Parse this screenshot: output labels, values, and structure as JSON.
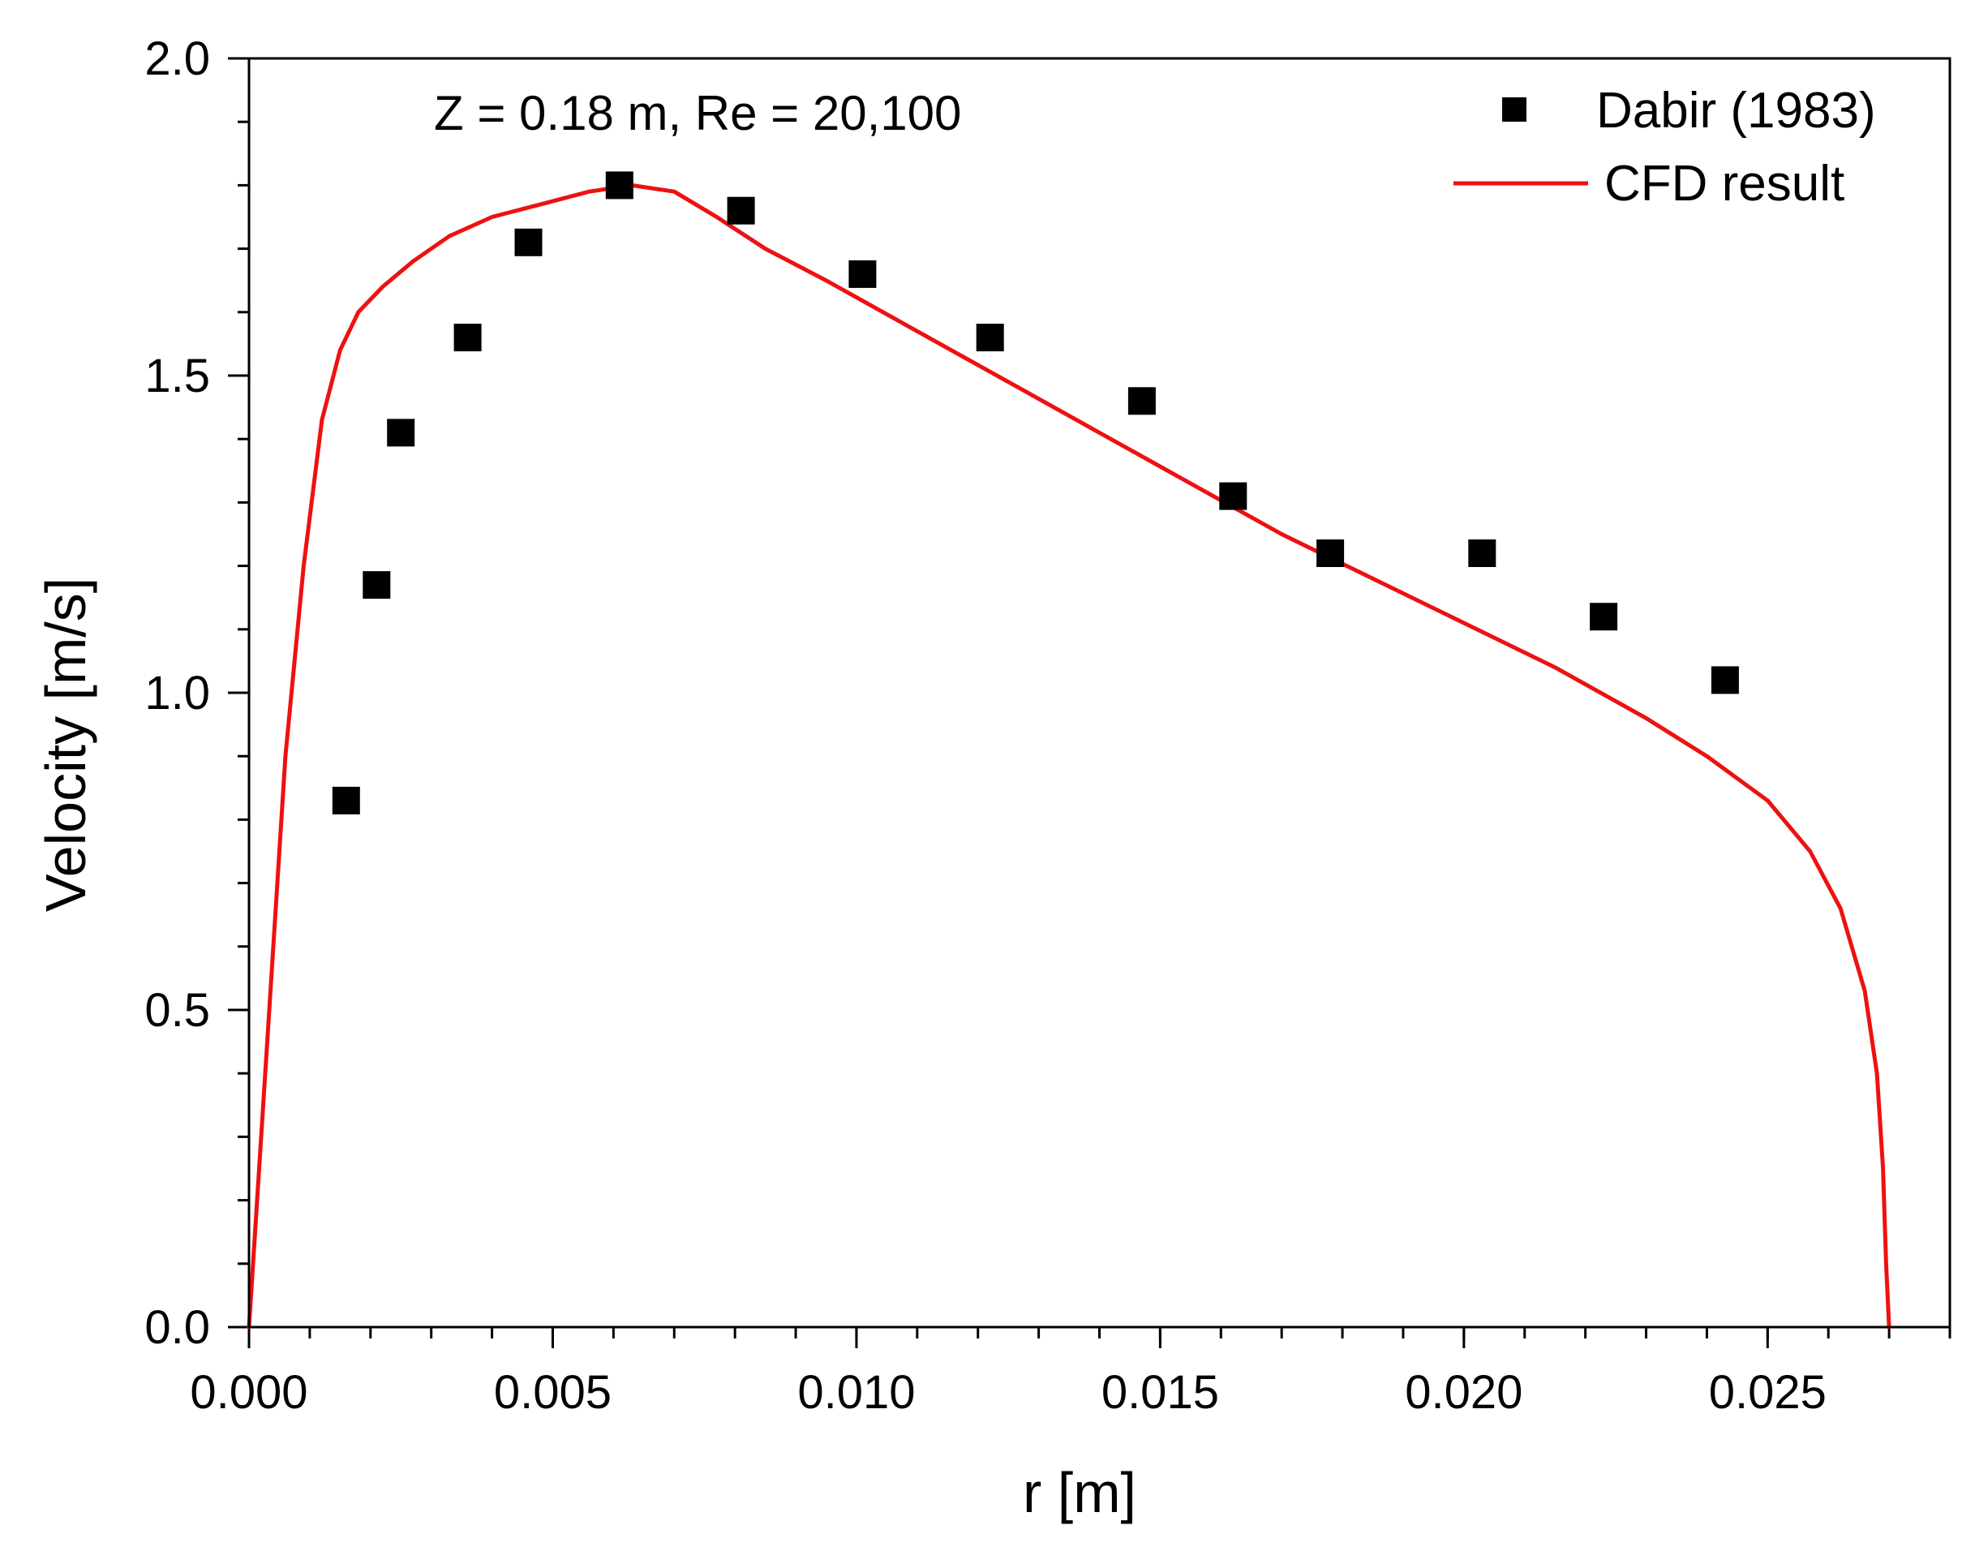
{
  "chart_data": {
    "type": "scatter",
    "title": "",
    "annotation": "Z = 0.18 m, Re = 20,100",
    "xlabel": "r [m]",
    "ylabel": "Velocity [m/s]",
    "xlim": [
      0.0,
      0.028
    ],
    "ylim": [
      0.0,
      2.0
    ],
    "x_ticks": [
      "0.000",
      "0.005",
      "0.010",
      "0.015",
      "0.020",
      "0.025"
    ],
    "y_ticks": [
      "0.0",
      "0.5",
      "1.0",
      "1.5",
      "2.0"
    ],
    "x_tick_values": [
      0.0,
      0.005,
      0.01,
      0.015,
      0.02,
      0.025
    ],
    "y_tick_values": [
      0.0,
      0.5,
      1.0,
      1.5,
      2.0
    ],
    "x_minor_step": 0.001,
    "y_minor_step": 0.1,
    "grid": false,
    "legend_position": "top-right",
    "series": [
      {
        "name": "Dabir (1983)",
        "kind": "markers",
        "marker": "square",
        "color": "#000000",
        "x": [
          0.0016,
          0.0021,
          0.0025,
          0.0036,
          0.0046,
          0.0061,
          0.0081,
          0.0101,
          0.0122,
          0.0147,
          0.0162,
          0.0178,
          0.0203,
          0.0223,
          0.0243
        ],
        "y": [
          0.83,
          1.17,
          1.41,
          1.56,
          1.71,
          1.8,
          1.76,
          1.66,
          1.56,
          1.46,
          1.31,
          1.22,
          1.22,
          1.12,
          1.02
        ]
      },
      {
        "name": "CFD result",
        "kind": "line",
        "color": "#ee1111",
        "x": [
          0.0,
          0.0003,
          0.0006,
          0.0009,
          0.0012,
          0.0015,
          0.0018,
          0.0022,
          0.0027,
          0.0033,
          0.004,
          0.0048,
          0.0056,
          0.0063,
          0.007,
          0.0077,
          0.0085,
          0.0095,
          0.011,
          0.0125,
          0.014,
          0.0155,
          0.017,
          0.0185,
          0.02,
          0.0215,
          0.023,
          0.024,
          0.025,
          0.0257,
          0.0262,
          0.0266,
          0.0268,
          0.0269,
          0.02695,
          0.027
        ],
        "y": [
          0.0,
          0.45,
          0.9,
          1.2,
          1.43,
          1.54,
          1.6,
          1.64,
          1.68,
          1.72,
          1.75,
          1.77,
          1.79,
          1.8,
          1.79,
          1.75,
          1.7,
          1.65,
          1.57,
          1.49,
          1.41,
          1.33,
          1.25,
          1.18,
          1.11,
          1.04,
          0.96,
          0.9,
          0.83,
          0.75,
          0.66,
          0.53,
          0.4,
          0.25,
          0.1,
          0.0
        ]
      }
    ]
  }
}
